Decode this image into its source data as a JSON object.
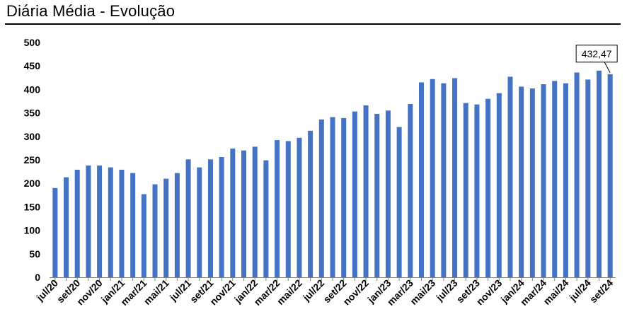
{
  "title": "Diária Média - Evolução",
  "colors": {
    "bar": "#4472C4",
    "axis": "#808080",
    "text": "#000000",
    "rule": "#000000"
  },
  "chart_data": {
    "type": "bar",
    "title": "Diária Média - Evolução",
    "xlabel": "",
    "ylabel": "",
    "ylim": [
      0,
      500
    ],
    "yticks": [
      "0",
      "50",
      "100",
      "150",
      "200",
      "250",
      "300",
      "350",
      "400",
      "450",
      "500"
    ],
    "grid": false,
    "legend": "none",
    "categories": [
      "jul/20",
      "ago/20",
      "set/20",
      "out/20",
      "nov/20",
      "dez/20",
      "jan/21",
      "fev/21",
      "mar/21",
      "abr/21",
      "mai/21",
      "jun/21",
      "jul/21",
      "ago/21",
      "set/21",
      "out/21",
      "nov/21",
      "dez/21",
      "jan/22",
      "fev/22",
      "mar/22",
      "abr/22",
      "mai/22",
      "jun/22",
      "jul/22",
      "ago/22",
      "set/22",
      "out/22",
      "nov/22",
      "dez/22",
      "jan/23",
      "fev/23",
      "mar/23",
      "abr/23",
      "mai/23",
      "jun/23",
      "jul/23",
      "ago/23",
      "set/23",
      "out/23",
      "nov/23",
      "dez/23",
      "jan/24",
      "fev/24",
      "mar/24",
      "abr/24",
      "mai/24",
      "jun/24",
      "jul/24",
      "ago/24",
      "set/24"
    ],
    "xtick_labels": [
      "jul/20",
      "",
      "set/20",
      "",
      "nov/20",
      "",
      "jan/21",
      "",
      "mar/21",
      "",
      "mai/21",
      "",
      "jul/21",
      "",
      "set/21",
      "",
      "nov/21",
      "",
      "jan/22",
      "",
      "mar/22",
      "",
      "mai/22",
      "",
      "jul/22",
      "",
      "set/22",
      "",
      "nov/22",
      "",
      "jan/23",
      "",
      "mar/23",
      "",
      "mai/23",
      "",
      "jul/23",
      "",
      "set/23",
      "",
      "nov/23",
      "",
      "jan/24",
      "",
      "mar/24",
      "",
      "mai/24",
      "",
      "jul/24",
      "",
      "set/24"
    ],
    "values": [
      190,
      213,
      229,
      238,
      238,
      234,
      229,
      222,
      177,
      198,
      210,
      222,
      251,
      234,
      251,
      256,
      274,
      270,
      278,
      249,
      292,
      290,
      297,
      312,
      336,
      341,
      339,
      353,
      366,
      348,
      355,
      320,
      369,
      415,
      422,
      413,
      424,
      371,
      368,
      380,
      392,
      427,
      406,
      402,
      411,
      418,
      413,
      436,
      421,
      440,
      432.47
    ],
    "annotations": [
      {
        "category": "set/24",
        "text": "432,47"
      }
    ]
  }
}
